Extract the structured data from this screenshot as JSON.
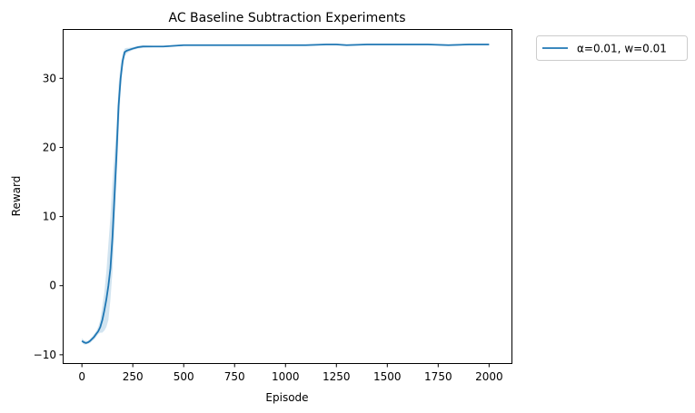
{
  "chart_data": {
    "type": "line",
    "title": "AC Baseline Subtraction Experiments",
    "xlabel": "Episode",
    "ylabel": "Reward",
    "xlim": [
      -90,
      2110
    ],
    "ylim": [
      -11.2,
      37.0
    ],
    "xticks": [
      0,
      250,
      500,
      750,
      1000,
      1250,
      1500,
      1750,
      2000
    ],
    "yticks": [
      -10,
      0,
      10,
      20,
      30
    ],
    "grid": false,
    "legend": {
      "placement": "outside-top-right",
      "entries": [
        "α=0.01, w=0.01"
      ]
    },
    "series": [
      {
        "name": "α=0.01, w=0.01",
        "color": "#1f77b4",
        "band_color": "#1f77b4",
        "x": [
          0,
          10,
          20,
          30,
          40,
          50,
          60,
          70,
          80,
          90,
          100,
          110,
          120,
          130,
          140,
          150,
          160,
          170,
          180,
          190,
          200,
          210,
          220,
          230,
          250,
          275,
          300,
          350,
          400,
          450,
          500,
          600,
          700,
          800,
          900,
          1000,
          1100,
          1200,
          1250,
          1300,
          1400,
          1500,
          1600,
          1700,
          1800,
          1900,
          2000
        ],
        "y": [
          -8.0,
          -8.2,
          -8.3,
          -8.2,
          -8.0,
          -7.7,
          -7.4,
          -7.0,
          -6.6,
          -6.0,
          -5.0,
          -3.6,
          -2.0,
          0.0,
          2.5,
          7.0,
          13.0,
          19.0,
          26.0,
          30.0,
          32.5,
          33.8,
          34.0,
          34.1,
          34.3,
          34.5,
          34.6,
          34.6,
          34.6,
          34.7,
          34.8,
          34.8,
          34.8,
          34.8,
          34.8,
          34.8,
          34.8,
          34.9,
          34.9,
          34.8,
          34.9,
          34.9,
          34.9,
          34.9,
          34.8,
          34.9,
          34.9
        ],
        "y_low": [
          -8.2,
          -8.5,
          -8.5,
          -8.4,
          -8.3,
          -8.0,
          -7.8,
          -7.4,
          -7.0,
          -6.8,
          -6.8,
          -6.5,
          -6.0,
          -5.0,
          -2.0,
          2.0,
          8.0,
          15.0,
          22.0,
          28.0,
          31.5,
          33.2,
          33.6,
          33.8,
          34.1,
          34.3,
          34.4,
          34.5,
          34.5,
          34.6,
          34.7,
          34.7,
          34.7,
          34.7,
          34.7,
          34.7,
          34.7,
          34.8,
          34.8,
          34.7,
          34.8,
          34.8,
          34.8,
          34.8,
          34.7,
          34.8,
          34.8
        ],
        "y_high": [
          -7.6,
          -7.9,
          -8.0,
          -8.0,
          -7.7,
          -7.4,
          -7.0,
          -6.6,
          -6.0,
          -5.0,
          -3.0,
          -1.0,
          2.0,
          6.0,
          10.0,
          15.0,
          19.0,
          23.0,
          29.0,
          32.0,
          33.5,
          34.3,
          34.4,
          34.4,
          34.5,
          34.7,
          34.8,
          34.7,
          34.7,
          34.8,
          34.9,
          34.9,
          34.9,
          34.9,
          34.9,
          34.9,
          34.9,
          35.0,
          35.0,
          34.9,
          35.0,
          35.0,
          35.0,
          35.0,
          34.9,
          35.0,
          35.0
        ]
      }
    ]
  }
}
